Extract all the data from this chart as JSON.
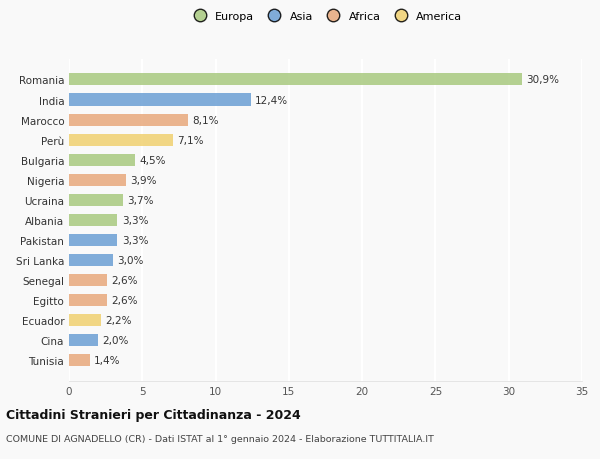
{
  "categories": [
    "Romania",
    "India",
    "Marocco",
    "Perù",
    "Bulgaria",
    "Nigeria",
    "Ucraina",
    "Albania",
    "Pakistan",
    "Sri Lanka",
    "Senegal",
    "Egitto",
    "Ecuador",
    "Cina",
    "Tunisia"
  ],
  "values": [
    30.9,
    12.4,
    8.1,
    7.1,
    4.5,
    3.9,
    3.7,
    3.3,
    3.3,
    3.0,
    2.6,
    2.6,
    2.2,
    2.0,
    1.4
  ],
  "labels": [
    "30,9%",
    "12,4%",
    "8,1%",
    "7,1%",
    "4,5%",
    "3,9%",
    "3,7%",
    "3,3%",
    "3,3%",
    "3,0%",
    "2,6%",
    "2,6%",
    "2,2%",
    "2,0%",
    "1,4%"
  ],
  "continent": [
    "Europa",
    "Asia",
    "Africa",
    "America",
    "Europa",
    "Africa",
    "Europa",
    "Europa",
    "Asia",
    "Asia",
    "Africa",
    "Africa",
    "America",
    "Asia",
    "Africa"
  ],
  "colors": {
    "Europa": "#a8c97f",
    "Asia": "#6b9fd4",
    "Africa": "#e8a87c",
    "America": "#f0d070"
  },
  "legend_order": [
    "Europa",
    "Asia",
    "Africa",
    "America"
  ],
  "title": "Cittadini Stranieri per Cittadinanza - 2024",
  "subtitle": "COMUNE DI AGNADELLO (CR) - Dati ISTAT al 1° gennaio 2024 - Elaborazione TUTTITALIA.IT",
  "xlim": [
    0,
    35
  ],
  "xticks": [
    0,
    5,
    10,
    15,
    20,
    25,
    30,
    35
  ],
  "background_color": "#f9f9f9",
  "grid_color": "#ffffff",
  "bar_alpha": 0.85,
  "bar_height": 0.6
}
